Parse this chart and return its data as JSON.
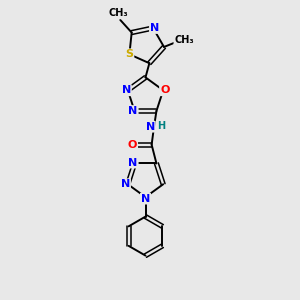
{
  "background_color": "#e8e8e8",
  "bond_color": "#000000",
  "atom_colors": {
    "N": "#0000ff",
    "O": "#ff0000",
    "S": "#ccaa00",
    "C": "#000000",
    "H": "#008080"
  },
  "font_size_atom": 8,
  "font_size_methyl": 7,
  "figsize": [
    3.0,
    3.0
  ],
  "dpi": 100
}
